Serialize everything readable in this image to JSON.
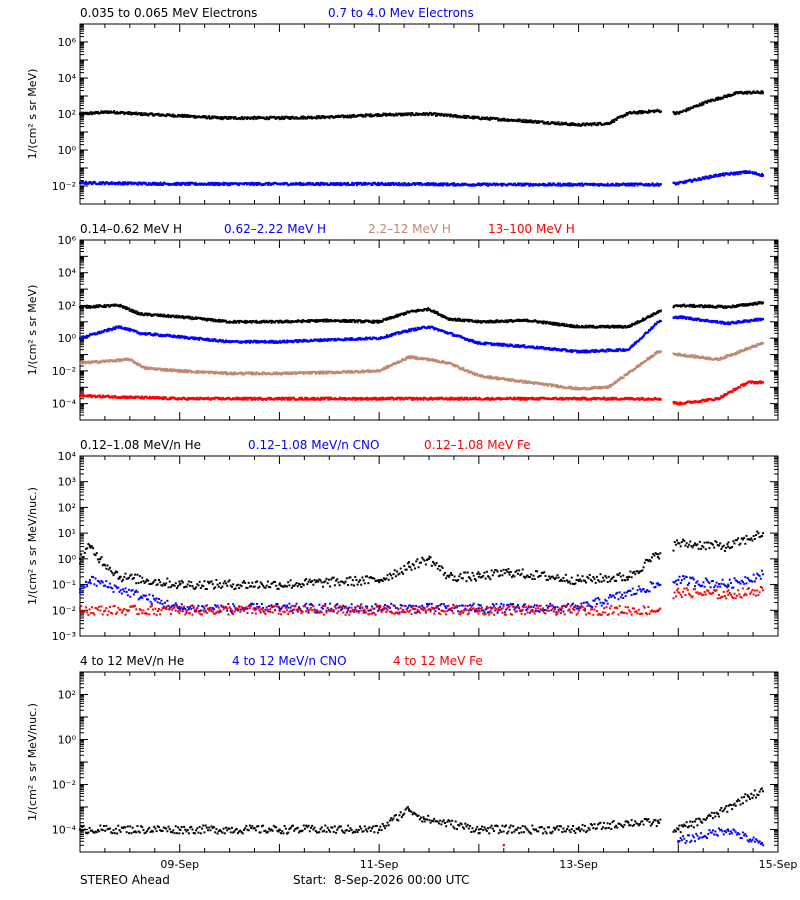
{
  "colors": {
    "black": "#000000",
    "blue": "#0000ff",
    "tan": "#c08870",
    "red": "#ff0000"
  },
  "footer": {
    "spacecraft": "STEREO Ahead",
    "start_label": "Start:",
    "start_value": "8-Sep-2026 00:00 UTC"
  },
  "x_axis": {
    "type": "time",
    "range_days": [
      0,
      7
    ],
    "ticks": [
      {
        "day": 1,
        "label": "09-Sep"
      },
      {
        "day": 3,
        "label": "11-Sep"
      },
      {
        "day": 5,
        "label": "13-Sep"
      },
      {
        "day": 7,
        "label": "15-Sep"
      }
    ]
  },
  "chart_data": [
    {
      "type": "scatter",
      "panel": "electrons",
      "ylabel": "1/(cm² s sr MeV)",
      "yscale": "log",
      "ylim": [
        0.001,
        10000000
      ],
      "yticks": [
        {
          "exp": -2,
          "label": "10⁻²"
        },
        {
          "exp": 0,
          "label": "10⁰"
        },
        {
          "exp": 2,
          "label": "10²"
        },
        {
          "exp": 4,
          "label": "10⁴"
        },
        {
          "exp": 6,
          "label": "10⁶"
        }
      ],
      "data_gap_days": [
        5.83,
        5.95
      ],
      "series": [
        {
          "name": "0.035 to 0.065 MeV Electrons",
          "color": "#000000",
          "points": [
            [
              0,
              100
            ],
            [
              0.3,
              130
            ],
            [
              0.6,
              100
            ],
            [
              1.0,
              80
            ],
            [
              1.4,
              60
            ],
            [
              2.0,
              60
            ],
            [
              2.6,
              70
            ],
            [
              3.0,
              90
            ],
            [
              3.5,
              100
            ],
            [
              4.0,
              60
            ],
            [
              4.5,
              40
            ],
            [
              5.0,
              25
            ],
            [
              5.3,
              30
            ],
            [
              5.5,
              110
            ],
            [
              5.8,
              150
            ],
            [
              6.0,
              110
            ],
            [
              6.3,
              500
            ],
            [
              6.6,
              1500
            ],
            [
              6.85,
              1600
            ]
          ]
        },
        {
          "name": "0.7 to 4.0 Mev Electrons",
          "color": "#0000ff",
          "points": [
            [
              0,
              0.015
            ],
            [
              1,
              0.013
            ],
            [
              2,
              0.013
            ],
            [
              3,
              0.013
            ],
            [
              4,
              0.012
            ],
            [
              5,
              0.012
            ],
            [
              5.8,
              0.012
            ],
            [
              6.0,
              0.014
            ],
            [
              6.4,
              0.04
            ],
            [
              6.7,
              0.06
            ],
            [
              6.85,
              0.04
            ]
          ]
        }
      ]
    },
    {
      "type": "scatter",
      "panel": "protons",
      "ylabel": "1/(cm² s sr MeV)",
      "yscale": "log",
      "ylim": [
        1e-05,
        1000000
      ],
      "yticks": [
        {
          "exp": -4,
          "label": "10⁻⁴"
        },
        {
          "exp": -2,
          "label": "10⁻²"
        },
        {
          "exp": 0,
          "label": "10⁰"
        },
        {
          "exp": 2,
          "label": "10²"
        },
        {
          "exp": 4,
          "label": "10⁴"
        },
        {
          "exp": 6,
          "label": "10⁶"
        }
      ],
      "data_gap_days": [
        5.83,
        5.95
      ],
      "series": [
        {
          "name": "0.14–0.62 MeV H",
          "color": "#000000",
          "points": [
            [
              0,
              80
            ],
            [
              0.4,
              100
            ],
            [
              0.6,
              30
            ],
            [
              1.0,
              20
            ],
            [
              1.5,
              10
            ],
            [
              2.0,
              10
            ],
            [
              2.5,
              12
            ],
            [
              3.0,
              10
            ],
            [
              3.3,
              40
            ],
            [
              3.5,
              60
            ],
            [
              3.7,
              15
            ],
            [
              4.0,
              10
            ],
            [
              4.5,
              12
            ],
            [
              5.0,
              5
            ],
            [
              5.5,
              5
            ],
            [
              5.8,
              40
            ],
            [
              6.0,
              100
            ],
            [
              6.5,
              80
            ],
            [
              6.85,
              150
            ]
          ]
        },
        {
          "name": "0.62–2.22 MeV H",
          "color": "#0000ff",
          "points": [
            [
              0,
              1
            ],
            [
              0.4,
              5
            ],
            [
              0.6,
              2
            ],
            [
              1.0,
              1.2
            ],
            [
              1.5,
              0.6
            ],
            [
              2.0,
              0.6
            ],
            [
              2.5,
              0.8
            ],
            [
              3.0,
              1
            ],
            [
              3.3,
              3
            ],
            [
              3.5,
              5
            ],
            [
              3.7,
              2
            ],
            [
              4.0,
              0.5
            ],
            [
              4.5,
              0.3
            ],
            [
              5.0,
              0.15
            ],
            [
              5.5,
              0.2
            ],
            [
              5.8,
              10
            ],
            [
              6.0,
              20
            ],
            [
              6.5,
              8
            ],
            [
              6.85,
              15
            ]
          ]
        },
        {
          "name": "2.2–12 MeV H",
          "color": "#c08870",
          "points": [
            [
              0,
              0.03
            ],
            [
              0.5,
              0.05
            ],
            [
              0.65,
              0.015
            ],
            [
              1.0,
              0.01
            ],
            [
              1.5,
              0.007
            ],
            [
              2.0,
              0.007
            ],
            [
              2.5,
              0.008
            ],
            [
              3.0,
              0.01
            ],
            [
              3.3,
              0.07
            ],
            [
              3.5,
              0.05
            ],
            [
              3.7,
              0.03
            ],
            [
              4.0,
              0.005
            ],
            [
              4.5,
              0.002
            ],
            [
              5.0,
              0.0008
            ],
            [
              5.3,
              0.001
            ],
            [
              5.6,
              0.02
            ],
            [
              5.8,
              0.15
            ],
            [
              6.0,
              0.1
            ],
            [
              6.4,
              0.05
            ],
            [
              6.85,
              0.5
            ]
          ]
        },
        {
          "name": "13–100 MeV H",
          "color": "#ff0000",
          "points": [
            [
              0,
              0.0003
            ],
            [
              1,
              0.0002
            ],
            [
              2,
              0.0002
            ],
            [
              3,
              0.0002
            ],
            [
              4,
              0.0002
            ],
            [
              5,
              0.0002
            ],
            [
              5.8,
              0.0002
            ],
            [
              6.0,
              0.0001
            ],
            [
              6.4,
              0.0002
            ],
            [
              6.7,
              0.002
            ],
            [
              6.85,
              0.002
            ]
          ]
        }
      ]
    },
    {
      "type": "scatter",
      "panel": "ions_low",
      "ylabel": "1/(cm² s sr MeV/nuc.)",
      "yscale": "log",
      "ylim": [
        0.001,
        10000
      ],
      "yticks": [
        {
          "exp": -3,
          "label": "10⁻³"
        },
        {
          "exp": -2,
          "label": "10⁻²"
        },
        {
          "exp": -1,
          "label": "10⁻¹"
        },
        {
          "exp": 0,
          "label": "10⁰"
        },
        {
          "exp": 1,
          "label": "10¹"
        },
        {
          "exp": 2,
          "label": "10²"
        },
        {
          "exp": 3,
          "label": "10³"
        },
        {
          "exp": 4,
          "label": "10⁴"
        }
      ],
      "data_gap_days": [
        5.83,
        5.95
      ],
      "series": [
        {
          "name": "0.12–1.08 MeV/n He",
          "color": "#000000",
          "points": [
            [
              0,
              1
            ],
            [
              0.1,
              3
            ],
            [
              0.2,
              1
            ],
            [
              0.4,
              0.2
            ],
            [
              1.0,
              0.1
            ],
            [
              2.0,
              0.1
            ],
            [
              3.0,
              0.15
            ],
            [
              3.3,
              0.5
            ],
            [
              3.5,
              1
            ],
            [
              3.7,
              0.2
            ],
            [
              4.0,
              0.2
            ],
            [
              4.3,
              0.3
            ],
            [
              5.0,
              0.15
            ],
            [
              5.5,
              0.2
            ],
            [
              5.8,
              1.5
            ],
            [
              6.0,
              4
            ],
            [
              6.5,
              3
            ],
            [
              6.85,
              10
            ]
          ]
        },
        {
          "name": "0.12–1.08 MeV/n CNO",
          "color": "#0000ff",
          "points": [
            [
              0,
              0.05
            ],
            [
              0.1,
              0.15
            ],
            [
              1,
              0.012
            ],
            [
              2,
              0.012
            ],
            [
              3,
              0.012
            ],
            [
              4,
              0.012
            ],
            [
              5,
              0.012
            ],
            [
              5.8,
              0.1
            ],
            [
              6.0,
              0.15
            ],
            [
              6.5,
              0.1
            ],
            [
              6.85,
              0.25
            ]
          ]
        },
        {
          "name": "0.12–1.08 MeV Fe",
          "color": "#ff0000",
          "points": [
            [
              0,
              0.01
            ],
            [
              1,
              0.01
            ],
            [
              2,
              0.01
            ],
            [
              3,
              0.01
            ],
            [
              4,
              0.01
            ],
            [
              5,
              0.01
            ],
            [
              5.8,
              0.01
            ],
            [
              6.0,
              0.05
            ],
            [
              6.5,
              0.04
            ],
            [
              6.85,
              0.06
            ]
          ]
        }
      ]
    },
    {
      "type": "scatter",
      "panel": "ions_high",
      "ylabel": "1/(cm² s sr MeV/nuc.)",
      "yscale": "log",
      "ylim": [
        1e-05,
        1000
      ],
      "yticks": [
        {
          "exp": -4,
          "label": "10⁻⁴"
        },
        {
          "exp": -2,
          "label": "10⁻²"
        },
        {
          "exp": 0,
          "label": "10⁰"
        },
        {
          "exp": 2,
          "label": "10²"
        }
      ],
      "data_gap_days": [
        5.83,
        5.95
      ],
      "series": [
        {
          "name": "4 to 12 MeV/n He",
          "color": "#000000",
          "points": [
            [
              0,
              0.0001
            ],
            [
              1,
              0.0001
            ],
            [
              2,
              0.0001
            ],
            [
              3,
              0.0001
            ],
            [
              3.3,
              0.0008
            ],
            [
              3.45,
              0.0003
            ],
            [
              4,
              0.0001
            ],
            [
              5,
              0.0001
            ],
            [
              5.5,
              0.0002
            ],
            [
              5.8,
              0.0002
            ],
            [
              6.0,
              0.0001
            ],
            [
              6.4,
              0.0005
            ],
            [
              6.7,
              0.003
            ],
            [
              6.85,
              0.005
            ]
          ]
        },
        {
          "name": "4 to 12 MeV/n CNO",
          "color": "#0000ff",
          "points": [
            [
              6.0,
              3e-05
            ],
            [
              6.5,
              0.0001
            ],
            [
              6.85,
              2e-05
            ]
          ]
        },
        {
          "name": "4 to 12 MeV Fe",
          "color": "#ff0000",
          "points": [
            [
              4.25,
              2e-05
            ]
          ]
        }
      ]
    }
  ]
}
